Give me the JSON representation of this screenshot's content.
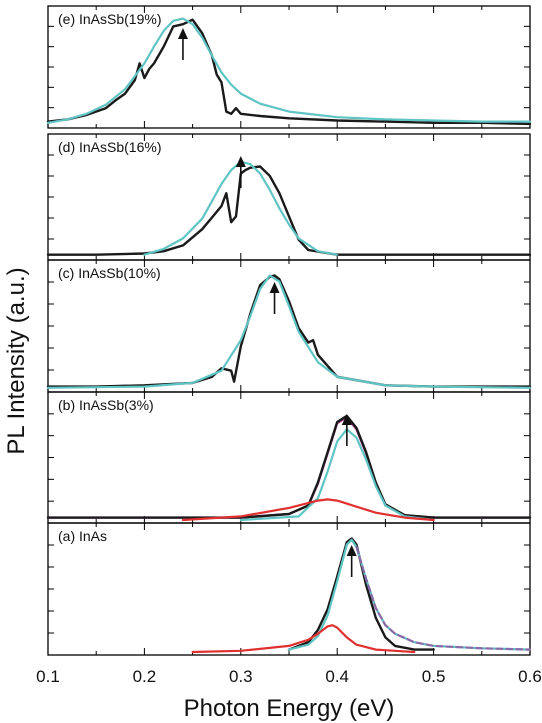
{
  "colors": {
    "black": "#1a1a1a",
    "cyan": "#5fc4c4",
    "magenta": "#b0309a",
    "red": "#e03030",
    "dashed": "#8a6aa8"
  },
  "chart_data": {
    "type": "line",
    "xlabel": "Photon Energy (eV)",
    "ylabel": "PL Intensity (a.u.)",
    "xlim": [
      0.1,
      0.6
    ],
    "x_ticks": [
      "0.1",
      "0.2",
      "0.3",
      "0.4",
      "0.5",
      "0.6"
    ],
    "x_tick_values": [
      0.1,
      0.2,
      0.3,
      0.4,
      0.5,
      0.6
    ],
    "grid": false,
    "panels": [
      {
        "id": "e",
        "title": "(e) InAsSb(19%)",
        "arrow_x": 0.24,
        "series": [
          {
            "color": "black",
            "x": [
              0.1,
              0.12,
              0.14,
              0.16,
              0.17,
              0.18,
              0.19,
              0.195,
              0.2,
              0.205,
              0.21,
              0.22,
              0.23,
              0.24,
              0.25,
              0.26,
              0.27,
              0.275,
              0.28,
              0.285,
              0.29,
              0.295,
              0.3,
              0.32,
              0.35,
              0.4,
              0.45,
              0.5,
              0.55,
              0.6
            ],
            "y": [
              0.03,
              0.05,
              0.09,
              0.15,
              0.22,
              0.28,
              0.4,
              0.55,
              0.42,
              0.5,
              0.55,
              0.7,
              0.88,
              0.9,
              0.94,
              0.82,
              0.62,
              0.45,
              0.38,
              0.12,
              0.1,
              0.15,
              0.1,
              0.08,
              0.06,
              0.04,
              0.03,
              0.02,
              0.02,
              0.01
            ]
          },
          {
            "color": "cyan",
            "x": [
              0.1,
              0.12,
              0.14,
              0.16,
              0.18,
              0.2,
              0.21,
              0.22,
              0.23,
              0.24,
              0.25,
              0.26,
              0.27,
              0.28,
              0.29,
              0.3,
              0.32,
              0.35,
              0.4,
              0.45,
              0.5,
              0.55,
              0.6
            ],
            "y": [
              0.02,
              0.05,
              0.1,
              0.18,
              0.32,
              0.55,
              0.7,
              0.84,
              0.93,
              0.95,
              0.9,
              0.78,
              0.62,
              0.47,
              0.36,
              0.28,
              0.19,
              0.12,
              0.07,
              0.05,
              0.04,
              0.03,
              0.03
            ]
          }
        ]
      },
      {
        "id": "d",
        "title": "(d) InAsSb(16%)",
        "arrow_x": 0.3,
        "series": [
          {
            "color": "black",
            "x": [
              0.1,
              0.15,
              0.2,
              0.22,
              0.24,
              0.26,
              0.27,
              0.28,
              0.285,
              0.29,
              0.295,
              0.3,
              0.305,
              0.31,
              0.32,
              0.33,
              0.34,
              0.35,
              0.36,
              0.37,
              0.4,
              0.45,
              0.5,
              0.6
            ],
            "y": [
              0.02,
              0.02,
              0.03,
              0.05,
              0.1,
              0.24,
              0.34,
              0.44,
              0.55,
              0.3,
              0.35,
              0.72,
              0.75,
              0.77,
              0.78,
              0.7,
              0.55,
              0.35,
              0.15,
              0.06,
              0.02,
              0.02,
              0.02,
              0.02
            ]
          },
          {
            "color": "cyan",
            "x": [
              0.2,
              0.22,
              0.24,
              0.26,
              0.27,
              0.28,
              0.29,
              0.3,
              0.31,
              0.32,
              0.33,
              0.34,
              0.35,
              0.36,
              0.38,
              0.4
            ],
            "y": [
              0.02,
              0.07,
              0.16,
              0.33,
              0.48,
              0.63,
              0.75,
              0.82,
              0.8,
              0.72,
              0.58,
              0.42,
              0.28,
              0.16,
              0.05,
              0.02
            ]
          }
        ]
      },
      {
        "id": "c",
        "title": "(c) InAsSb(10%)",
        "arrow_x": 0.335,
        "series": [
          {
            "color": "black",
            "x": [
              0.1,
              0.15,
              0.2,
              0.25,
              0.27,
              0.28,
              0.29,
              0.293,
              0.3,
              0.31,
              0.32,
              0.33,
              0.335,
              0.34,
              0.35,
              0.36,
              0.37,
              0.375,
              0.38,
              0.4,
              0.45,
              0.5,
              0.6
            ],
            "y": [
              0.02,
              0.02,
              0.03,
              0.05,
              0.1,
              0.17,
              0.15,
              0.06,
              0.35,
              0.62,
              0.85,
              0.92,
              0.93,
              0.9,
              0.72,
              0.5,
              0.38,
              0.4,
              0.28,
              0.1,
              0.03,
              0.02,
              0.02
            ]
          },
          {
            "color": "cyan",
            "x": [
              0.1,
              0.2,
              0.25,
              0.28,
              0.3,
              0.31,
              0.32,
              0.33,
              0.34,
              0.35,
              0.36,
              0.38,
              0.4,
              0.45,
              0.5,
              0.6
            ],
            "y": [
              0.01,
              0.02,
              0.05,
              0.15,
              0.4,
              0.6,
              0.82,
              0.93,
              0.88,
              0.68,
              0.47,
              0.22,
              0.1,
              0.03,
              0.02,
              0.01
            ]
          }
        ]
      },
      {
        "id": "b",
        "title": "(b) InAsSb(3%)",
        "arrow_x": 0.41,
        "series": [
          {
            "color": "magenta",
            "x": [
              0.1,
              0.2,
              0.3,
              0.35,
              0.37,
              0.38,
              0.39,
              0.4,
              0.41,
              0.42,
              0.43,
              0.44,
              0.45,
              0.47,
              0.5,
              0.6
            ],
            "y": [
              0.02,
              0.02,
              0.02,
              0.05,
              0.12,
              0.3,
              0.55,
              0.8,
              0.85,
              0.75,
              0.55,
              0.3,
              0.12,
              0.04,
              0.02,
              0.02
            ]
          },
          {
            "color": "black",
            "x": [
              0.1,
              0.2,
              0.3,
              0.35,
              0.37,
              0.38,
              0.39,
              0.4,
              0.41,
              0.42,
              0.43,
              0.44,
              0.45,
              0.47,
              0.5,
              0.6
            ],
            "y": [
              0.02,
              0.02,
              0.02,
              0.05,
              0.12,
              0.31,
              0.56,
              0.81,
              0.86,
              0.76,
              0.56,
              0.31,
              0.13,
              0.04,
              0.02,
              0.02
            ]
          },
          {
            "color": "cyan",
            "x": [
              0.3,
              0.36,
              0.38,
              0.39,
              0.4,
              0.41,
              0.42,
              0.43,
              0.44,
              0.45,
              0.47,
              0.5
            ],
            "y": [
              0.0,
              0.03,
              0.18,
              0.4,
              0.65,
              0.75,
              0.68,
              0.5,
              0.28,
              0.12,
              0.03,
              0.0
            ]
          },
          {
            "color": "red",
            "x": [
              0.24,
              0.3,
              0.35,
              0.38,
              0.39,
              0.4,
              0.42,
              0.44,
              0.47,
              0.5
            ],
            "y": [
              0.0,
              0.03,
              0.1,
              0.16,
              0.17,
              0.16,
              0.11,
              0.06,
              0.02,
              0.0
            ]
          }
        ]
      },
      {
        "id": "a",
        "title": "(a) InAs",
        "arrow_x": 0.415,
        "series": [
          {
            "color": "black",
            "x": [
              0.35,
              0.37,
              0.38,
              0.39,
              0.4,
              0.41,
              0.415,
              0.42,
              0.43,
              0.44,
              0.45,
              0.46,
              0.48,
              0.5
            ],
            "y": [
              0.02,
              0.08,
              0.18,
              0.35,
              0.62,
              0.9,
              0.93,
              0.88,
              0.55,
              0.28,
              0.12,
              0.05,
              0.02,
              0.02
            ]
          },
          {
            "color": "cyan",
            "x": [
              0.35,
              0.37,
              0.38,
              0.39,
              0.4,
              0.41,
              0.415,
              0.42,
              0.43,
              0.44,
              0.45,
              0.46,
              0.48,
              0.5,
              0.55,
              0.6
            ],
            "y": [
              0.02,
              0.06,
              0.13,
              0.3,
              0.58,
              0.88,
              0.92,
              0.86,
              0.6,
              0.36,
              0.22,
              0.15,
              0.08,
              0.05,
              0.03,
              0.02
            ]
          },
          {
            "color": "dashed",
            "x": [
              0.42,
              0.43,
              0.44,
              0.45,
              0.46,
              0.48,
              0.5,
              0.55,
              0.6
            ],
            "y": [
              0.86,
              0.6,
              0.36,
              0.22,
              0.15,
              0.08,
              0.05,
              0.03,
              0.02
            ]
          },
          {
            "color": "red",
            "x": [
              0.25,
              0.3,
              0.35,
              0.37,
              0.38,
              0.39,
              0.395,
              0.4,
              0.41,
              0.42,
              0.44,
              0.46,
              0.48
            ],
            "y": [
              0.0,
              0.01,
              0.05,
              0.1,
              0.15,
              0.21,
              0.22,
              0.2,
              0.12,
              0.06,
              0.02,
              0.01,
              0.0
            ]
          }
        ]
      }
    ]
  }
}
